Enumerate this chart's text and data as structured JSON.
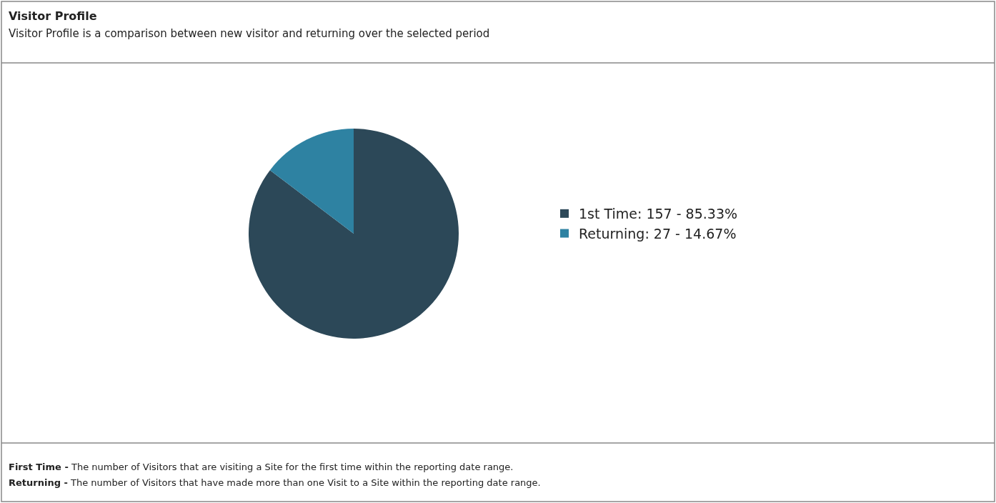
{
  "chart_data": {
    "type": "pie",
    "title": "Visitor Profile",
    "subtitle": "Visitor Profile is a comparison between new visitor and returning over the selected period",
    "categories": [
      "1st Time: 157 - 85.33%",
      "Returning: 27 - 14.67%"
    ],
    "values": [
      157,
      27
    ],
    "colors": [
      "#2c4858",
      "#2e82a2"
    ],
    "legend": "right",
    "annotations": [
      "First Time - The number of Visitors that are visiting a Site for the first time within the reporting date range.",
      "Returning - The number of Visitors that have made more than one Visit to a Site within the reporting date range."
    ]
  }
}
